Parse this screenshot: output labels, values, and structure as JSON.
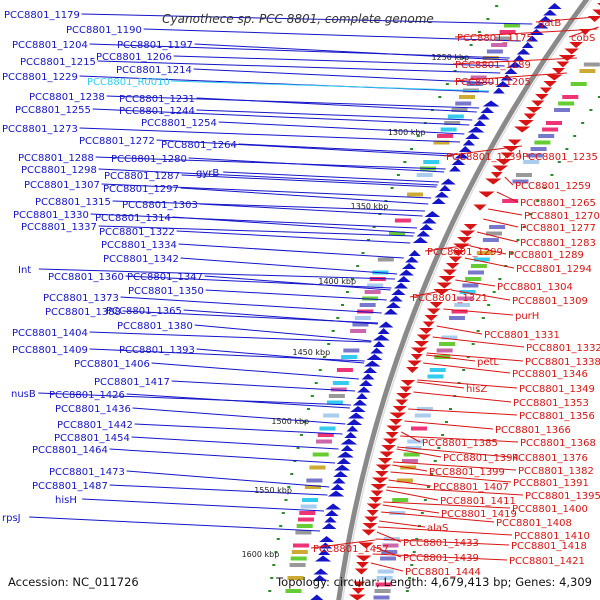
{
  "title": "Cyanothece sp. PCC 8801, complete genome",
  "accession": "Accession: NC_011726",
  "summary": "Topology: circular; Length: 4,679,413 bp; Genes: 4,309",
  "colors": {
    "forward": "#1414c8",
    "reverse": "#d81414",
    "rna": "#33ccee",
    "backbone": "#8a8a8a",
    "tick": "#2a8a2a"
  },
  "ticks": [
    "1250 kbp",
    "1300 kbp",
    "1350 kbp",
    "1400 kbp",
    "1450 kbp",
    "1500 kbp",
    "1550 kbp",
    "1600 kbp"
  ],
  "left_labels": [
    "PCC8801_1179",
    "PCC8801_1190",
    "PCC8801_1204",
    "PCC8801_1197",
    "PCC8801_1206",
    "PCC8801_1215",
    "PCC8801_1214",
    "PCC8801_1229",
    "PCC8801_R0010",
    "PCC8801_1238",
    "PCC8801_1231",
    "PCC8801_1255",
    "PCC8801_1244",
    "PCC8801_1254",
    "PCC8801_1273",
    "PCC8801_1272",
    "PCC8801_1264",
    "PCC8801_1288",
    "PCC8801_1280",
    "PCC8801_1298",
    "gyrB",
    "PCC8801_1287",
    "PCC8801_1307",
    "PCC8801_1297",
    "PCC8801_1315",
    "PCC8801_1303",
    "PCC8801_1330",
    "PCC8801_1314",
    "PCC8801_1337",
    "PCC8801_1322",
    "PCC8801_1334",
    "PCC8801_1342",
    "Int",
    "PCC8801_1360",
    "PCC8801_1347",
    "PCC8801_1373",
    "PCC8801_1350",
    "PCC8801_1388",
    "PCC8801_1365",
    "PCC8801_1380",
    "PCC8801_1404",
    "PCC8801_1409",
    "PCC8801_1393",
    "PCC8801_1406",
    "PCC8801_1417",
    "nusB",
    "PCC8801_1426",
    "PCC8801_1436",
    "PCC8801_1442",
    "PCC8801_1454",
    "PCC8801_1464",
    "PCC8801_1473",
    "PCC8801_1487",
    "hisH",
    "rpsJ"
  ],
  "right_labels": [
    "gatB",
    "PCC8801_1175",
    "cobS",
    "PCC8801_1189",
    "PCC8801_1205",
    "PCC8801_1239",
    "PCC8801_1235",
    "PCC8801_1259",
    "PCC8801_1265",
    "PCC8801_1270",
    "PCC8801_1277",
    "PCC8801_1283",
    "PCC8801_1299",
    "PCC8801_1289",
    "PCC8801_1294",
    "PCC8801_1304",
    "PCC8801_1321",
    "PCC8801_1309",
    "purH",
    "PCC8801_1331",
    "PCC8801_1332",
    "petL",
    "PCC8801_1338",
    "PCC8801_1346",
    "hisZ",
    "PCC8801_1349",
    "PCC8801_1353",
    "PCC8801_1356",
    "PCC8801_1366",
    "PCC8801_1385",
    "PCC8801_1368",
    "PCC8801_1394",
    "PCC8801_1376",
    "PCC8801_1399",
    "PCC8801_1382",
    "PCC8801_1391",
    "PCC8801_1407",
    "PCC8801_1395",
    "PCC8801_1411",
    "PCC8801_1400",
    "PCC8801_1419",
    "PCC8801_1408",
    "alaS",
    "PCC8801_1410",
    "PCC8801_1433",
    "PCC8801_1418",
    "PCC8801_1457",
    "PCC8801_1439",
    "PCC8801_1421",
    "PCC8801_1444"
  ]
}
